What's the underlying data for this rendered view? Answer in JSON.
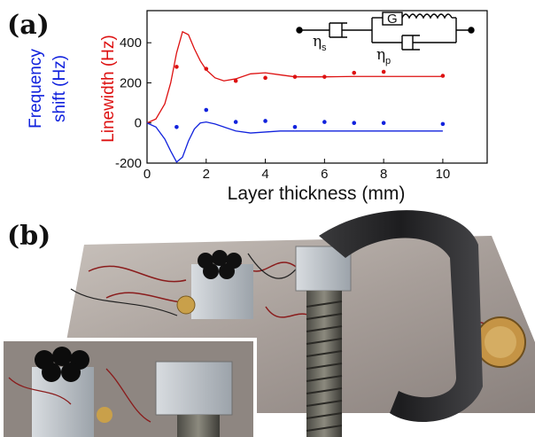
{
  "panel_a_label": "(a)",
  "panel_b_label": "(b)",
  "colors": {
    "red": "#dd1111",
    "blue": "#1122dd",
    "axis": "#000000"
  },
  "chart_data": {
    "type": "line",
    "title": "",
    "xlabel": "Layer thickness (mm)",
    "ylabel_red": "Linewidth (Hz)",
    "ylabel_blue_line1": "Frequency",
    "ylabel_blue_line2": "shift (Hz)",
    "xlim": [
      0,
      11.5
    ],
    "ylim": [
      -200,
      560
    ],
    "xticks": [
      0,
      2,
      4,
      6,
      8,
      10
    ],
    "yticks": [
      -200,
      0,
      200,
      400
    ],
    "grid": false,
    "series": [
      {
        "color": "red",
        "style": "line",
        "x": [
          0,
          0.3,
          0.6,
          0.8,
          1.0,
          1.2,
          1.4,
          1.6,
          1.8,
          2.0,
          2.3,
          2.6,
          3.0,
          3.5,
          4.0,
          4.5,
          5.0,
          6.0,
          7.0,
          8.0,
          9.0,
          10.0
        ],
        "y": [
          0,
          20,
          95,
          200,
          350,
          455,
          440,
          370,
          310,
          265,
          225,
          210,
          220,
          245,
          250,
          240,
          230,
          230,
          232,
          232,
          232,
          232
        ]
      },
      {
        "color": "red",
        "style": "points",
        "x": [
          1,
          2,
          3,
          4,
          5,
          6,
          7,
          8,
          10
        ],
        "y": [
          280,
          270,
          210,
          225,
          230,
          230,
          250,
          255,
          235
        ]
      },
      {
        "color": "blue",
        "style": "line",
        "x": [
          0,
          0.3,
          0.6,
          0.8,
          1.0,
          1.2,
          1.4,
          1.6,
          1.8,
          2.0,
          2.3,
          2.6,
          3.0,
          3.5,
          4.0,
          4.5,
          5.0,
          6.0,
          7.0,
          8.0,
          9.0,
          10.0
        ],
        "y": [
          0,
          -20,
          -80,
          -140,
          -195,
          -170,
          -90,
          -30,
          0,
          5,
          -5,
          -20,
          -40,
          -50,
          -45,
          -40,
          -40,
          -40,
          -40,
          -40,
          -40,
          -40
        ]
      },
      {
        "color": "blue",
        "style": "points",
        "x": [
          1,
          2,
          3,
          4,
          5,
          6,
          7,
          8,
          10
        ],
        "y": [
          -20,
          65,
          5,
          10,
          -20,
          5,
          0,
          0,
          -5
        ]
      }
    ],
    "annotations": [
      "η",
      "s",
      "G",
      "η",
      "p"
    ]
  }
}
